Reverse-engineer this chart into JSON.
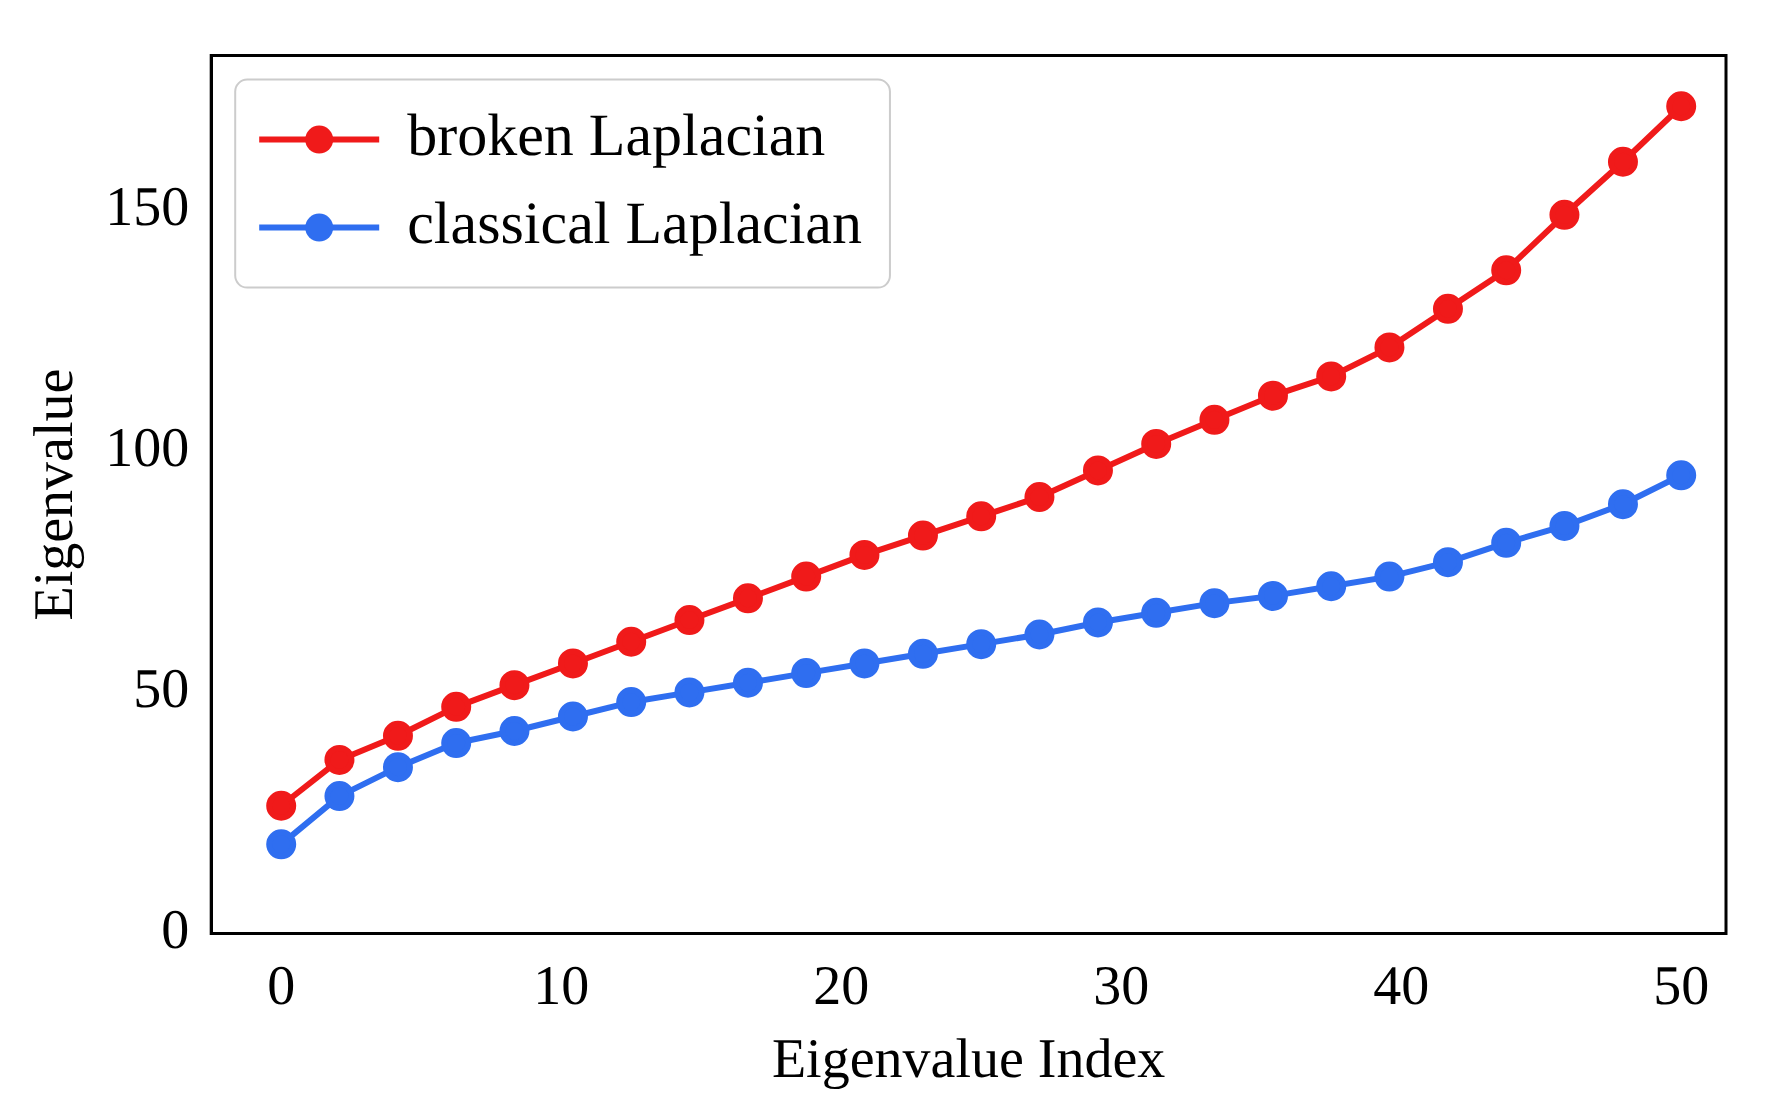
{
  "chart_data": {
    "type": "line",
    "xlabel": "Eigenvalue Index",
    "ylabel": "Eigenvalue",
    "x": [
      0,
      2.08,
      4.17,
      6.25,
      8.33,
      10.42,
      12.5,
      14.58,
      16.67,
      18.75,
      20.83,
      22.92,
      25,
      27.08,
      29.17,
      31.25,
      33.33,
      35.42,
      37.5,
      39.58,
      41.67,
      43.75,
      45.83,
      47.92,
      50
    ],
    "series": [
      {
        "name": "broken Laplacian",
        "color": "#f01a1a",
        "values": [
          26.5,
          36,
          41,
          47,
          51.5,
          56,
          60.5,
          65,
          69.5,
          74,
          78.5,
          82.5,
          86.5,
          90.5,
          96,
          101.5,
          106.5,
          111.5,
          115.5,
          121.5,
          129.5,
          137.5,
          149,
          160,
          171.5
        ]
      },
      {
        "name": "classical Laplacian",
        "color": "#2f6ef0",
        "values": [
          18.5,
          28.5,
          34.5,
          39.5,
          42,
          45,
          48,
          50,
          52,
          54,
          56,
          58,
          60,
          62,
          64.5,
          66.5,
          68.5,
          70,
          72,
          74,
          77,
          81,
          84.5,
          89,
          95
        ]
      }
    ],
    "xlim": [
      -2.5,
      51.6
    ],
    "ylim": [
      0,
      182
    ],
    "xticks": [
      0,
      10,
      20,
      30,
      40,
      50
    ],
    "yticks": [
      0,
      50,
      100,
      150
    ],
    "grid": false,
    "legend": "top left",
    "marker": "circle",
    "line_style": "solid"
  }
}
